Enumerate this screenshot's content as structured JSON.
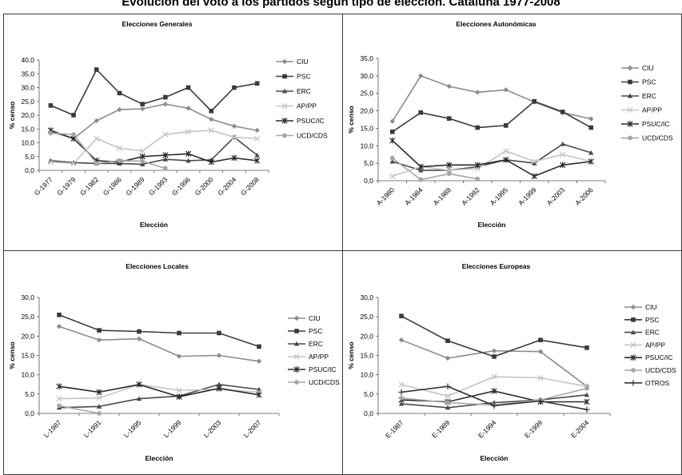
{
  "page": {
    "title": "Evolución del voto a los partidos según tipo de elección. Cataluña 1977-2008"
  },
  "colors": {
    "CIU": "#8c8c8c",
    "PSC": "#3a3a3a",
    "ERC": "#4a4a4a",
    "AP/PP": "#c4c4c4",
    "PSUC/IC": "#2a2a2a",
    "UCD/CDS": "#a6a6a6",
    "OTROS": "#333333"
  },
  "chart_data": [
    {
      "type": "line",
      "title": "Elecciones Generales",
      "xlabel": "Elección",
      "ylabel": "% censo",
      "ylim": [
        0,
        40
      ],
      "yticks": [
        "0,0",
        "5,0",
        "10,0",
        "15,0",
        "20,0",
        "25,0",
        "30,0",
        "35,0",
        "40,0"
      ],
      "categories": [
        "G-1977",
        "G-1979",
        "G-1982",
        "G-1986",
        "G-1989",
        "G-1993",
        "G-1996",
        "G-2000",
        "G-2004",
        "G-2008"
      ],
      "legend_position": "right",
      "series": [
        {
          "name": "CIU",
          "marker": "diamond",
          "values": [
            14,
            11.5,
            18,
            22,
            22.3,
            24,
            22.5,
            18.5,
            16,
            14.5
          ]
        },
        {
          "name": "PSC",
          "marker": "square",
          "values": [
            23.5,
            20,
            36.5,
            28,
            24,
            26.5,
            30,
            21.5,
            30,
            31.5
          ]
        },
        {
          "name": "ERC",
          "marker": "triangle",
          "values": [
            3.5,
            2.8,
            2.5,
            2.5,
            2.2,
            4,
            3.5,
            3.8,
            12,
            5.5
          ]
        },
        {
          "name": "AP/PP",
          "marker": "x",
          "values": [
            3,
            2.5,
            11.5,
            8,
            7,
            13,
            14,
            14.5,
            12,
            11.5
          ]
        },
        {
          "name": "PSUC/IC",
          "marker": "asterisk",
          "values": [
            14.5,
            11.5,
            3.5,
            3,
            5,
            5.5,
            6,
            3,
            4.5,
            3.5
          ]
        },
        {
          "name": "UCD/CDS",
          "marker": "circle",
          "values": [
            13.5,
            13,
            2.5,
            3.5,
            3.3,
            0.7,
            null,
            null,
            null,
            null
          ]
        }
      ]
    },
    {
      "type": "line",
      "title": "Elecciones Autonómicas",
      "xlabel": "Elección",
      "ylabel": "% censo",
      "ylim": [
        0,
        35
      ],
      "yticks": [
        "0,0",
        "5,0",
        "10,0",
        "15,0",
        "20,0",
        "25,0",
        "30,0",
        "35,0"
      ],
      "categories": [
        "A-1980",
        "A-1984",
        "A-1988",
        "A-1992",
        "A-1995",
        "A-1999",
        "A-2003",
        "A-2006"
      ],
      "legend_position": "right",
      "series": [
        {
          "name": "CIU",
          "marker": "diamond",
          "values": [
            17,
            30,
            27,
            25.3,
            26,
            22.5,
            19.5,
            17.7
          ]
        },
        {
          "name": "PSC",
          "marker": "square",
          "values": [
            14,
            19.5,
            17.8,
            15.2,
            15.8,
            22.7,
            19.7,
            15.2
          ]
        },
        {
          "name": "ERC",
          "marker": "triangle",
          "values": [
            5.5,
            3,
            3,
            4,
            6,
            5,
            10.5,
            8
          ]
        },
        {
          "name": "AP/PP",
          "marker": "x",
          "values": [
            1.3,
            4,
            3,
            3.5,
            8.5,
            5.5,
            7.5,
            5.5
          ]
        },
        {
          "name": "PSUC/IC",
          "marker": "asterisk",
          "values": [
            11.5,
            4,
            4.5,
            4.5,
            6,
            1.3,
            4.5,
            5.5
          ]
        },
        {
          "name": "UCD/CDS",
          "marker": "circle",
          "values": [
            6.5,
            0.3,
            2,
            0.5,
            null,
            null,
            null,
            null
          ]
        }
      ]
    },
    {
      "type": "line",
      "title": "Elecciones Locales",
      "xlabel": "Elección",
      "ylabel": "% censo",
      "ylim": [
        0,
        30
      ],
      "yticks": [
        "0,0",
        "5,0",
        "10,0",
        "15,0",
        "20,0",
        "25,0",
        "30,0"
      ],
      "categories": [
        "L-1987",
        "L-1991",
        "L-1995",
        "L-1999",
        "L-2003",
        "L-2007"
      ],
      "legend_position": "right",
      "series": [
        {
          "name": "CIU",
          "marker": "diamond",
          "values": [
            22.5,
            19,
            19.3,
            14.8,
            15,
            13.5
          ]
        },
        {
          "name": "PSC",
          "marker": "square",
          "values": [
            25.5,
            21.5,
            21.2,
            20.8,
            20.8,
            17.3
          ]
        },
        {
          "name": "ERC",
          "marker": "triangle",
          "values": [
            1.5,
            1.8,
            3.8,
            4.5,
            7.5,
            6.2
          ]
        },
        {
          "name": "AP/PP",
          "marker": "x",
          "values": [
            3.8,
            4,
            7.5,
            6,
            6.2,
            5.5
          ]
        },
        {
          "name": "PSUC/IC",
          "marker": "asterisk",
          "values": [
            7,
            5.5,
            7.5,
            4.3,
            6.5,
            4.8
          ]
        },
        {
          "name": "UCD/CDS",
          "marker": "circle",
          "values": [
            2,
            0,
            null,
            null,
            null,
            null
          ]
        }
      ]
    },
    {
      "type": "line",
      "title": "Elecciones Europeas",
      "xlabel": "Elección",
      "ylabel": "% censo",
      "ylim": [
        0,
        30
      ],
      "yticks": [
        "0,0",
        "5,0",
        "10,0",
        "15,0",
        "20,0",
        "25,0",
        "30,0"
      ],
      "categories": [
        "E-1987",
        "E-1989",
        "E-1994",
        "E-1999",
        "E-2004"
      ],
      "legend_position": "right",
      "series": [
        {
          "name": "CIU",
          "marker": "diamond",
          "values": [
            19,
            14.3,
            16.2,
            16,
            7
          ]
        },
        {
          "name": "PSC",
          "marker": "square",
          "values": [
            25.2,
            18.8,
            14.7,
            19,
            17
          ]
        },
        {
          "name": "ERC",
          "marker": "triangle",
          "values": [
            2.5,
            1.5,
            2.8,
            3.5,
            4.8
          ]
        },
        {
          "name": "AP/PP",
          "marker": "x",
          "values": [
            7.5,
            4.5,
            9.5,
            9.2,
            7
          ]
        },
        {
          "name": "PSUC/IC",
          "marker": "asterisk",
          "values": [
            3.5,
            3,
            5.8,
            3,
            3
          ]
        },
        {
          "name": "UCD/CDS",
          "marker": "circle",
          "values": [
            4,
            2.8,
            2.2,
            3.5,
            6.5
          ]
        },
        {
          "name": "OTROS",
          "marker": "plus",
          "values": [
            5.5,
            7,
            2,
            3.2,
            1
          ]
        }
      ]
    }
  ]
}
